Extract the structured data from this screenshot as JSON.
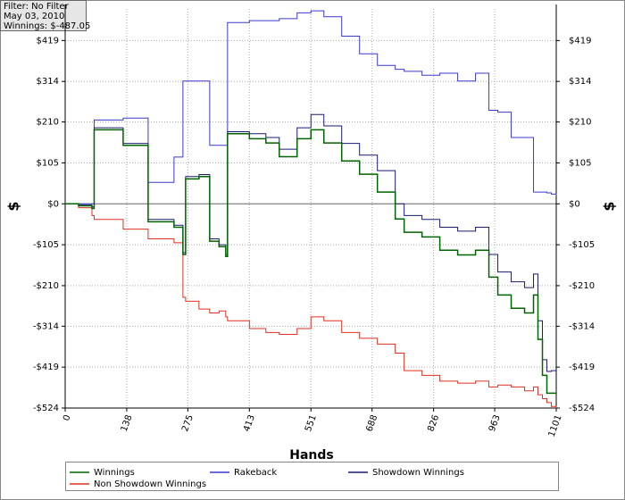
{
  "chart_data": {
    "type": "line",
    "step": true,
    "filter_text": [
      "Filter: No Filter",
      "May 03, 2010",
      "Winnings: $-487.05"
    ],
    "xlabel": "Hands",
    "ylabel": "$",
    "grid": true,
    "xlim": [
      0,
      1101
    ],
    "xticks": [
      0,
      138,
      275,
      413,
      551,
      688,
      826,
      963,
      1101
    ],
    "ylim": [
      -524,
      500
    ],
    "yticks": [
      {
        "value": -524,
        "label": "-$524"
      },
      {
        "value": -419,
        "label": "-$419"
      },
      {
        "value": -314,
        "label": "-$314"
      },
      {
        "value": -210,
        "label": "-$210"
      },
      {
        "value": -105,
        "label": "-$105"
      },
      {
        "value": 0,
        "label": "$0"
      },
      {
        "value": 105,
        "label": "$105"
      },
      {
        "value": 210,
        "label": "$210"
      },
      {
        "value": 314,
        "label": "$314"
      },
      {
        "value": 419,
        "label": "$419"
      }
    ],
    "x": [
      0,
      30,
      60,
      65,
      130,
      186,
      244,
      264,
      270,
      300,
      324,
      345,
      360,
      364,
      413,
      450,
      480,
      520,
      551,
      580,
      620,
      660,
      700,
      740,
      760,
      800,
      840,
      880,
      920,
      950,
      970,
      1000,
      1030,
      1050,
      1060,
      1070,
      1080,
      1090,
      1101
    ],
    "series": [
      {
        "name": "Winnings",
        "color": "#006400",
        "width": 1.5,
        "values": [
          0,
          -5,
          -12,
          190,
          150,
          -46,
          -60,
          -130,
          64,
          70,
          -96,
          -110,
          -135,
          180,
          167,
          156,
          121,
          167,
          190,
          156,
          110,
          76,
          30,
          -39,
          -73,
          -85,
          -119,
          -131,
          -119,
          -188,
          -234,
          -268,
          -280,
          -234,
          -348,
          -440,
          -486,
          -486,
          -487
        ]
      },
      {
        "name": "Rakeback",
        "color": "#3a3ad0",
        "width": 1,
        "values": [
          0,
          0,
          0,
          215,
          220,
          55,
          120,
          315,
          315,
          315,
          150,
          150,
          150,
          465,
          470,
          470,
          475,
          490,
          495,
          480,
          430,
          385,
          355,
          345,
          340,
          330,
          335,
          315,
          335,
          240,
          235,
          170,
          170,
          30,
          30,
          30,
          28,
          25,
          22
        ]
      },
      {
        "name": "Showdown Winnings",
        "color": "#1a1a70",
        "width": 1,
        "values": [
          0,
          -3,
          -8,
          195,
          155,
          -40,
          -55,
          -125,
          70,
          75,
          -90,
          -105,
          -130,
          185,
          180,
          170,
          140,
          195,
          229,
          200,
          155,
          125,
          85,
          0,
          -30,
          -40,
          -60,
          -70,
          -60,
          -130,
          -175,
          -200,
          -215,
          -180,
          -300,
          -400,
          -430,
          -428,
          -428
        ]
      },
      {
        "name": "Non Showdown Winnings",
        "color": "#e03020",
        "width": 1,
        "values": [
          0,
          -10,
          -30,
          -40,
          -65,
          -90,
          -100,
          -240,
          -250,
          -270,
          -280,
          -275,
          -290,
          -300,
          -320,
          -330,
          -335,
          -320,
          -290,
          -300,
          -330,
          -345,
          -360,
          -383,
          -428,
          -440,
          -455,
          -460,
          -455,
          -470,
          -465,
          -470,
          -480,
          -470,
          -490,
          -500,
          -510,
          -520,
          -524
        ]
      }
    ]
  }
}
